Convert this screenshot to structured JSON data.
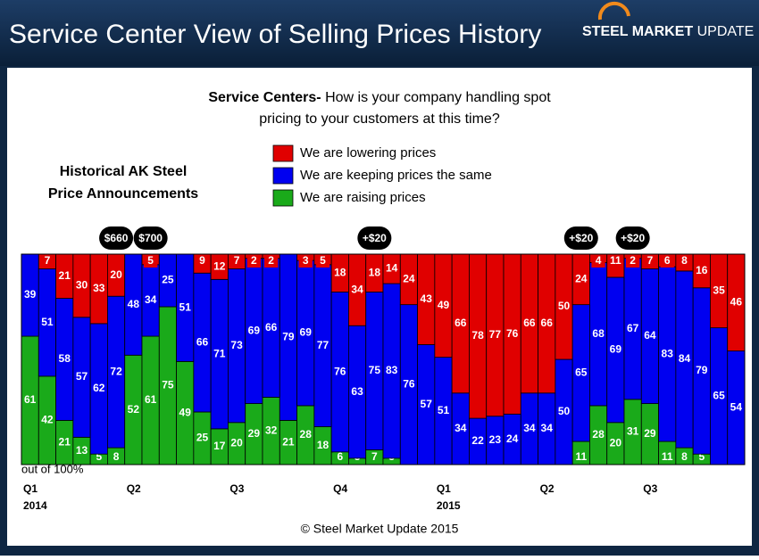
{
  "header": {
    "title": "Service Center View of Selling Prices History",
    "logo_bold": "STEEL MARKET",
    "logo_light": "UPDATE"
  },
  "chart_data": {
    "type": "stacked-bar",
    "question": {
      "lead": "Service Centers-",
      "lines": [
        "How is your company handling spot",
        "pricing to your customers at this time?"
      ]
    },
    "annotation_title": [
      "Historical AK Steel",
      "Price Announcements"
    ],
    "announcements": [
      {
        "index": 5,
        "label": "$660"
      },
      {
        "index": 7,
        "label": "$700"
      },
      {
        "index": 20,
        "label": "+$20"
      },
      {
        "index": 32,
        "label": "+$20"
      },
      {
        "index": 35,
        "label": "+$20"
      }
    ],
    "categories": [
      "Q1",
      null,
      null,
      null,
      null,
      null,
      "Q2",
      null,
      null,
      null,
      null,
      null,
      "Q3",
      null,
      null,
      null,
      null,
      null,
      "Q4",
      null,
      null,
      null,
      null,
      null,
      "Q1",
      null,
      null,
      null,
      null,
      null,
      "Q2",
      null,
      null,
      null,
      null,
      null,
      "Q3",
      null,
      null,
      null,
      null,
      null
    ],
    "years": [
      "2014",
      null,
      null,
      null,
      null,
      null,
      null,
      null,
      null,
      null,
      null,
      null,
      null,
      null,
      null,
      null,
      null,
      null,
      null,
      null,
      null,
      null,
      null,
      null,
      "2015",
      null,
      null,
      null,
      null,
      null,
      null,
      null,
      null,
      null,
      null,
      null,
      null,
      null,
      null,
      null,
      null,
      null
    ],
    "series": [
      {
        "name": "We are lowering prices",
        "color": "#e00000",
        "values": [
          0,
          7,
          21,
          30,
          33,
          20,
          0,
          5,
          0,
          0,
          9,
          12,
          7,
          2,
          2,
          0,
          3,
          5,
          18,
          34,
          18,
          14,
          24,
          43,
          49,
          66,
          78,
          77,
          76,
          66,
          66,
          50,
          24,
          4,
          11,
          2,
          7,
          6,
          8,
          16,
          35,
          46
        ]
      },
      {
        "name": "We are keeping prices the same",
        "color": "#0000f0",
        "values": [
          39,
          51,
          58,
          57,
          62,
          72,
          48,
          34,
          25,
          51,
          66,
          71,
          73,
          69,
          66,
          79,
          69,
          77,
          76,
          63,
          75,
          83,
          76,
          57,
          51,
          34,
          22,
          23,
          24,
          34,
          34,
          50,
          65,
          68,
          69,
          67,
          64,
          83,
          84,
          79,
          65,
          54
        ]
      },
      {
        "name": "We are raising prices",
        "color": "#1aaa1a",
        "values": [
          61,
          42,
          21,
          13,
          5,
          8,
          52,
          61,
          75,
          49,
          25,
          17,
          20,
          29,
          32,
          21,
          28,
          18,
          6,
          3,
          7,
          3,
          0,
          0,
          0,
          0,
          0,
          0,
          0,
          0,
          0,
          0,
          11,
          28,
          20,
          31,
          29,
          11,
          8,
          5,
          0,
          0
        ]
      }
    ],
    "ylim": [
      0,
      100
    ],
    "axis_note": "out of 100%",
    "source": "© Steel Market Update 2015"
  }
}
